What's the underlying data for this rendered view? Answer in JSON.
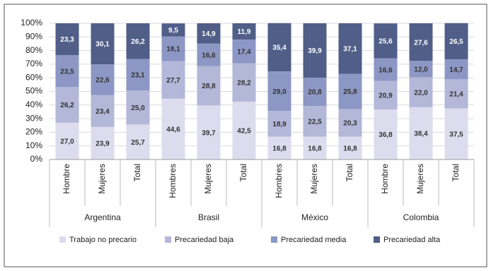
{
  "chart_data": {
    "type": "stacked_bar",
    "categories": [
      "Hombre",
      "Mujeres",
      "Total",
      "Hombres",
      "Mujeres",
      "Total",
      "Hombres",
      "Mujeres",
      "Total",
      "Hombre",
      "Mujeres",
      "Total"
    ],
    "groups": [
      "Argentina",
      "Brasil",
      "México",
      "Colombia"
    ],
    "ylim": [
      0,
      100
    ],
    "yticks": [
      {
        "value": 0,
        "label": "0%"
      },
      {
        "value": 10,
        "label": "10%"
      },
      {
        "value": 20,
        "label": "20%"
      },
      {
        "value": 30,
        "label": "30%"
      },
      {
        "value": 40,
        "label": "40%"
      },
      {
        "value": 50,
        "label": "50%"
      },
      {
        "value": 60,
        "label": "60%"
      },
      {
        "value": 70,
        "label": "70%"
      },
      {
        "value": 80,
        "label": "80%"
      },
      {
        "value": 90,
        "label": "90%"
      },
      {
        "value": 100,
        "label": "100%"
      }
    ],
    "grid": true,
    "series": [
      {
        "name": "Trabajo no precario",
        "color": "#dcdcee",
        "values": [
          27.0,
          23.9,
          25.7,
          44.6,
          39.7,
          42.5,
          16.8,
          16.8,
          16.8,
          36.8,
          38.4,
          37.5
        ],
        "value_labels": [
          "27,0",
          "23,9",
          "25,7",
          "44,6",
          "39,7",
          "42,5",
          "16,8",
          "16,8",
          "16,8",
          "36,8",
          "38,4",
          "37,5"
        ]
      },
      {
        "name": "Precariedad baja",
        "color": "#b3b7d8",
        "values": [
          26.2,
          23.4,
          25.0,
          27.7,
          28.8,
          28.2,
          18.9,
          22.5,
          20.3,
          20.9,
          22.0,
          21.4
        ],
        "value_labels": [
          "26,2",
          "23,4",
          "25,0",
          "27,7",
          "28,8",
          "28,2",
          "18,9",
          "22,5",
          "20,3",
          "20,9",
          "22,0",
          "21,4"
        ]
      },
      {
        "name": "Precariedad media",
        "color": "#8d97c5",
        "values": [
          23.5,
          22.6,
          23.1,
          18.1,
          16.6,
          17.4,
          29.0,
          20.8,
          25.8,
          16.6,
          12.0,
          14.7
        ],
        "value_labels": [
          "23,5",
          "22,6",
          "23,1",
          "18,1",
          "16,6",
          "17,4",
          "29,0",
          "20,8",
          "25,8",
          "16,6",
          "12,0",
          "14,7"
        ]
      },
      {
        "name": "Precariedad alta",
        "color": "#505e88",
        "values": [
          23.3,
          30.1,
          26.2,
          9.5,
          14.9,
          11.9,
          35.4,
          39.9,
          37.1,
          25.6,
          27.6,
          26.5
        ],
        "value_labels": [
          "23,3",
          "30,1",
          "26,2",
          "9,5",
          "14,9",
          "11,9",
          "35,4",
          "39,9",
          "37,1",
          "25,6",
          "27,6",
          "26,5"
        ]
      }
    ]
  }
}
